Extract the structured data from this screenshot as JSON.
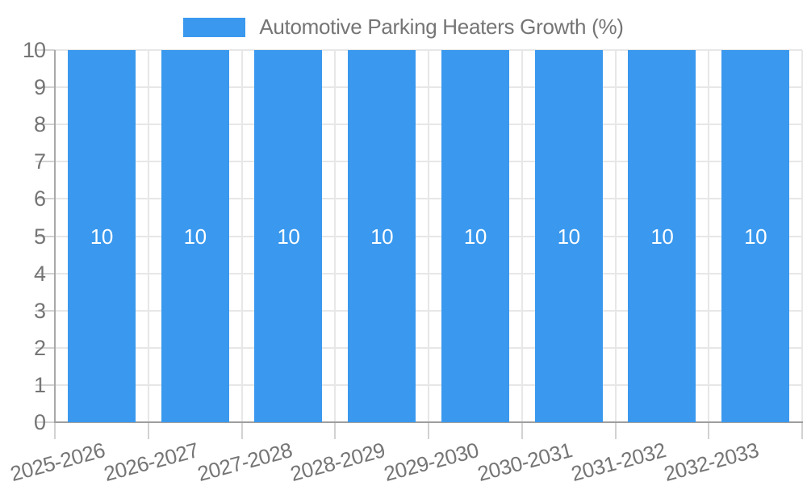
{
  "legend": {
    "label": "Automotive Parking Heaters Growth (%)"
  },
  "chart_data": {
    "type": "bar",
    "title": "Automotive Parking Heaters Growth (%)",
    "categories": [
      "2025-2026",
      "2026-2027",
      "2027-2028",
      "2028-2029",
      "2029-2030",
      "2030-2031",
      "2031-2032",
      "2032-2033"
    ],
    "values": [
      10,
      10,
      10,
      10,
      10,
      10,
      10,
      10
    ],
    "bar_value_labels": [
      "10",
      "10",
      "10",
      "10",
      "10",
      "10",
      "10",
      "10"
    ],
    "xlabel": "",
    "ylabel": "",
    "ylim": [
      0,
      10
    ],
    "yticks": [
      0,
      1,
      2,
      3,
      4,
      5,
      6,
      7,
      8,
      9,
      10
    ],
    "grid": true,
    "legend_position": "top",
    "colors": {
      "bar": "#3a99ee",
      "bar_label": "#ffffff",
      "axis_text": "#757575",
      "grid_line": "#e7e7e7",
      "axis_line_x": "#9e9e9e",
      "axis_line_y": "#a8a8a8",
      "tick_line": "#d2d2d2"
    }
  }
}
